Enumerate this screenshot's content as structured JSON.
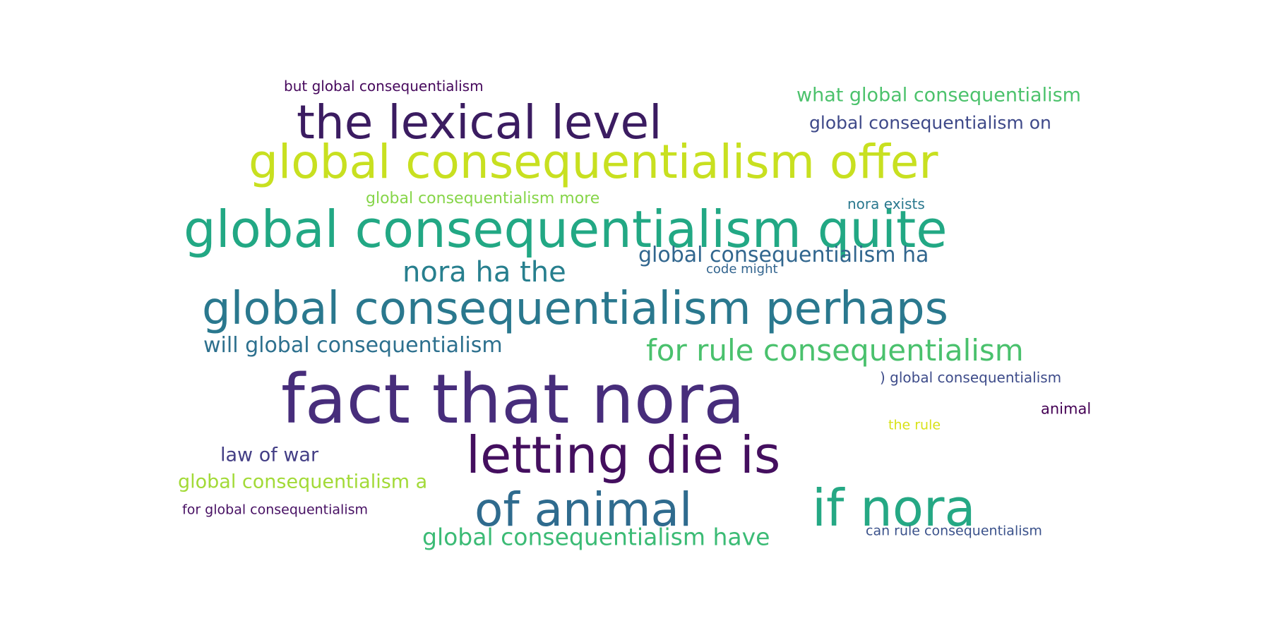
{
  "words": [
    {
      "text": "fact that nora",
      "color": "#472d7b"
    },
    {
      "text": "global consequentialism perhaps",
      "color": "#2a788e"
    },
    {
      "text": "global consequentialism quite",
      "color": "#22a884"
    },
    {
      "text": "global consequentialism offer",
      "color": "#c8e020"
    },
    {
      "text": "letting die is",
      "color": "#440f5f"
    },
    {
      "text": "the lexical level",
      "color": "#3b1c61"
    },
    {
      "text": "if nora",
      "color": "#25a884"
    },
    {
      "text": "of animal",
      "color": "#2f6b8e"
    },
    {
      "text": "nora ha the",
      "color": "#277f8e"
    },
    {
      "text": "for rule consequentialism",
      "color": "#4ac16d"
    },
    {
      "text": "global consequentialism have",
      "color": "#3bbb75"
    },
    {
      "text": "will global consequentialism",
      "color": "#2d708e"
    },
    {
      "text": "global consequentialism ha",
      "color": "#31668e"
    },
    {
      "text": "what global consequentialism",
      "color": "#4cc26c"
    },
    {
      "text": "global consequentialism on",
      "color": "#3e4989"
    },
    {
      "text": "global consequentialism a",
      "color": "#a2da37"
    },
    {
      "text": "law of war",
      "color": "#433e85"
    },
    {
      "text": "global consequentialism more",
      "color": "#86d549"
    },
    {
      "text": "but global consequentialism",
      "color": "#46085c"
    },
    {
      "text": ") global consequentialism",
      "color": "#3e4c8a"
    },
    {
      "text": "for global consequentialism",
      "color": "#471063"
    },
    {
      "text": "can rule consequentialism",
      "color": "#3b528b"
    },
    {
      "text": "nora exists",
      "color": "#2a788e"
    },
    {
      "text": "animal",
      "color": "#440154"
    },
    {
      "text": "the rule",
      "color": "#d8e219"
    },
    {
      "text": "code might",
      "color": "#32648e"
    }
  ]
}
